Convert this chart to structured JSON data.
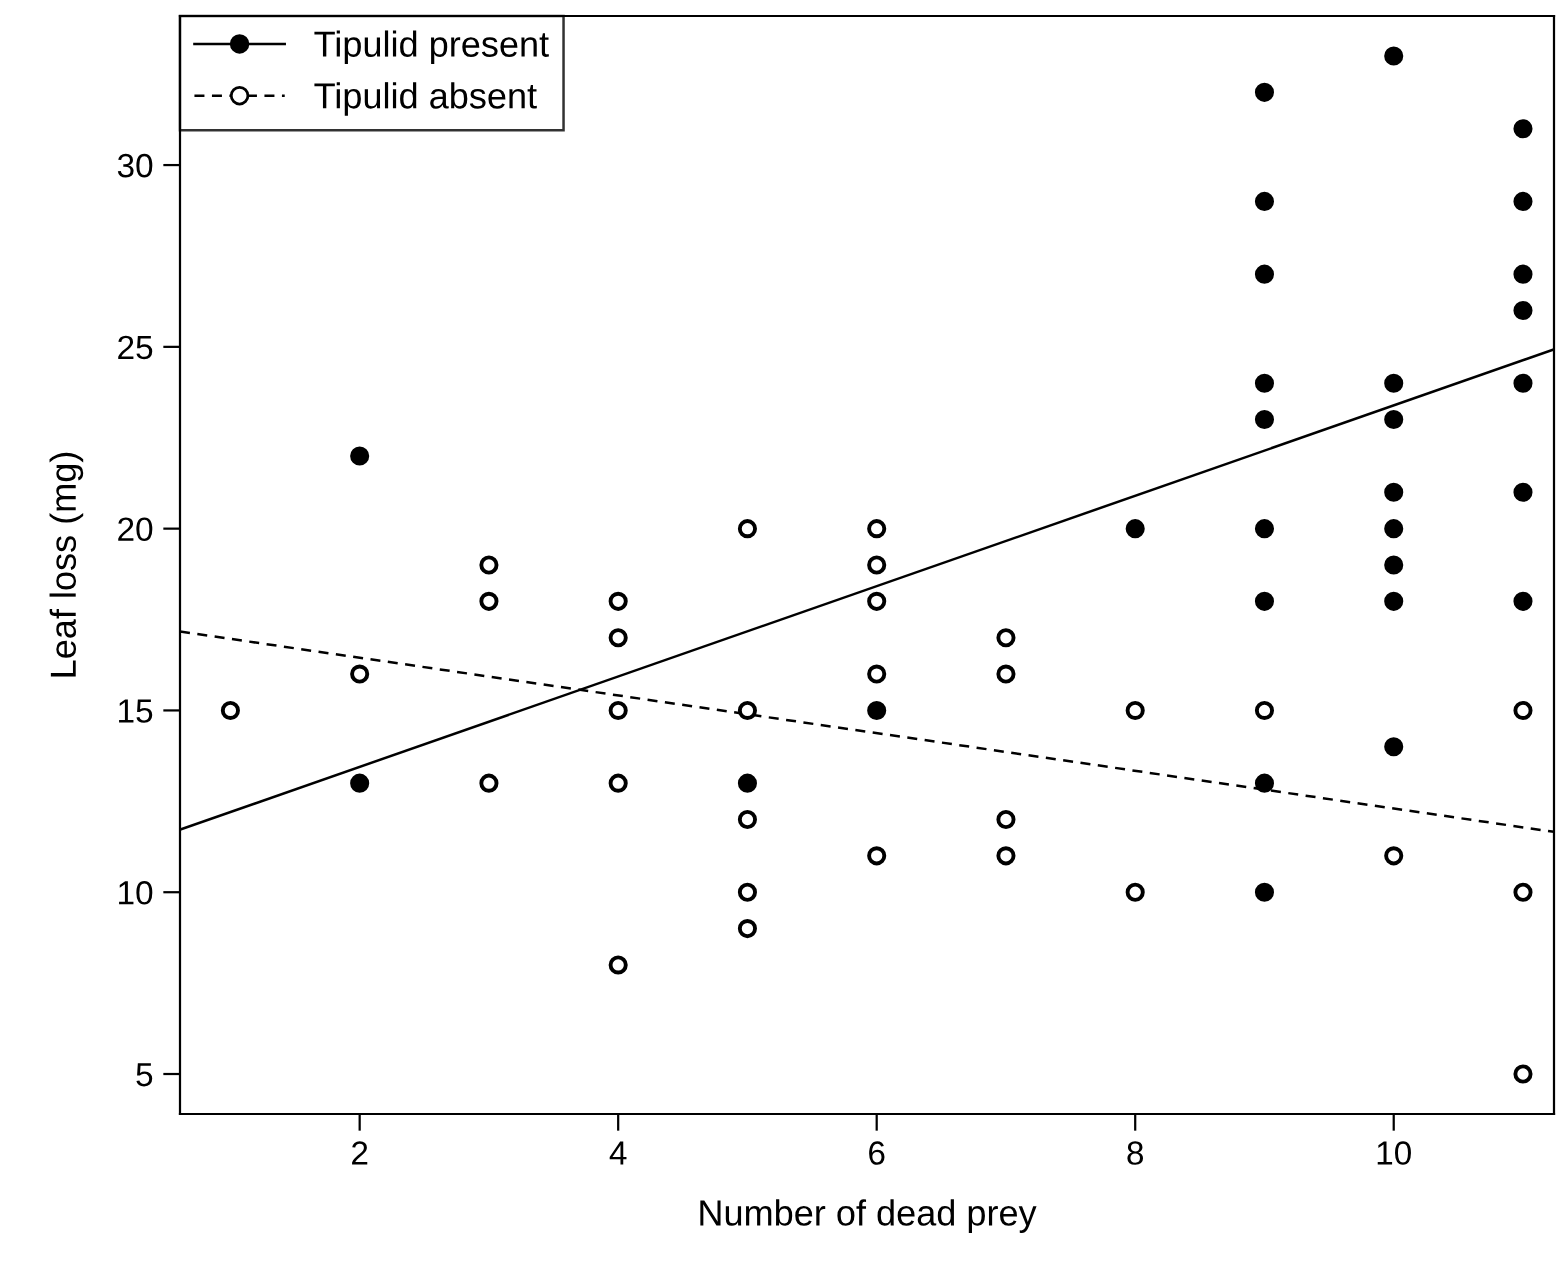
{
  "chart_data": {
    "type": "scatter",
    "xlabel": "Number of dead prey",
    "ylabel": "Leaf loss (mg)",
    "xlim": [
      0.61,
      11.24
    ],
    "ylim": [
      3.9,
      34.1
    ],
    "xticks": [
      2,
      4,
      6,
      8,
      10
    ],
    "yticks": [
      5,
      10,
      15,
      20,
      25,
      30
    ],
    "grid": false,
    "legend": "top left",
    "series": [
      {
        "name": "Tipulid present",
        "marker": "circle",
        "color": "#000000",
        "x": [
          2,
          2,
          5,
          6,
          8,
          9,
          9,
          9,
          9,
          9,
          9,
          9,
          9,
          9,
          10,
          10,
          10,
          10,
          10,
          10,
          10,
          10,
          11,
          11,
          11,
          11,
          11,
          11,
          11
        ],
        "values": [
          22,
          13,
          13,
          15,
          20,
          32,
          29,
          27,
          24,
          23,
          20,
          18,
          13,
          10,
          33,
          24,
          23,
          21,
          20,
          19,
          18,
          14,
          31,
          29,
          27,
          26,
          24,
          21,
          18
        ]
      },
      {
        "name": "Tipulid absent",
        "marker": "circle",
        "color": "#000000",
        "x": [
          1,
          2,
          3,
          3,
          3,
          4,
          4,
          4,
          4,
          4,
          5,
          5,
          5,
          5,
          5,
          6,
          6,
          6,
          6,
          6,
          7,
          7,
          7,
          7,
          8,
          8,
          9,
          10,
          11,
          11,
          11
        ],
        "values": [
          15,
          16,
          19,
          18,
          13,
          18,
          17,
          15,
          13,
          8,
          20,
          15,
          12,
          10,
          9,
          20,
          19,
          18,
          16,
          11,
          17,
          16,
          12,
          11,
          15,
          10,
          15,
          11,
          15,
          10,
          5
        ]
      },
      {
        "type": "line",
        "line_style": "solid",
        "color": "#000000",
        "x": [
          0.61,
          11.24
        ],
        "values": [
          11.72,
          24.93
        ]
      },
      {
        "type": "line",
        "line_style": "dashed",
        "color": "#000000",
        "x": [
          0.61,
          11.24
        ],
        "values": [
          17.17,
          11.66
        ]
      }
    ]
  }
}
